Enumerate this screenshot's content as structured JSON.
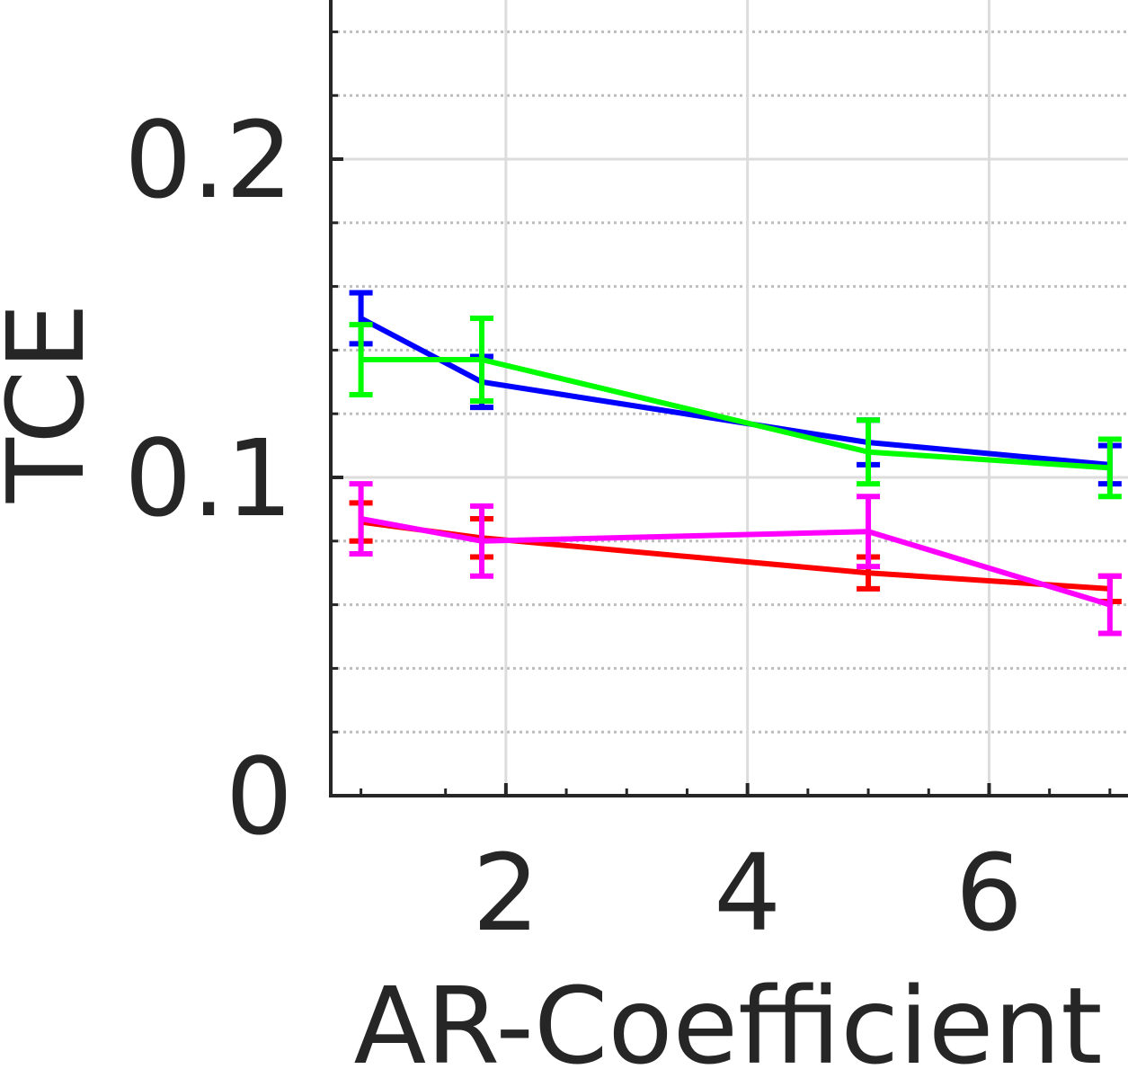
{
  "chart_data": {
    "type": "line",
    "title": "",
    "xlabel": "AR-Coefficient",
    "ylabel": "TCE",
    "xlim": [
      0.55,
      7.15
    ],
    "ylim": [
      0,
      0.25
    ],
    "xticks": [
      2,
      4,
      6
    ],
    "xtick_labels": [
      "2",
      "4",
      "6"
    ],
    "yticks": [
      0,
      0.1,
      0.2
    ],
    "ytick_labels": [
      "0",
      "0.1",
      "0.2"
    ],
    "y_minor_ticks": [
      0.02,
      0.04,
      0.06,
      0.08,
      0.12,
      0.14,
      0.16,
      0.18,
      0.22,
      0.24
    ],
    "x_minor_ticks": [
      0.8,
      1.5,
      2.5,
      3.0,
      3.5,
      4.5,
      5.0,
      5.5,
      6.5,
      7.0
    ],
    "grid": true,
    "legend": "none",
    "x": [
      0.8,
      1.8,
      5.0,
      7.0
    ],
    "series": [
      {
        "color": "#ff0000",
        "values": [
          0.086,
          0.081,
          0.07,
          0.065
        ],
        "errors": [
          0.006,
          0.006,
          0.005,
          0.004
        ]
      },
      {
        "color": "#ff00ff",
        "values": [
          0.087,
          0.08,
          0.083,
          0.06
        ],
        "errors": [
          0.011,
          0.011,
          0.011,
          0.009
        ]
      },
      {
        "color": "#0000ff",
        "values": [
          0.15,
          0.13,
          0.111,
          0.104
        ],
        "errors": [
          0.008,
          0.008,
          0.007,
          0.006
        ]
      },
      {
        "color": "#00ff00",
        "values": [
          0.137,
          0.137,
          0.108,
          0.103
        ],
        "errors": [
          0.011,
          0.013,
          0.01,
          0.009
        ]
      }
    ]
  }
}
